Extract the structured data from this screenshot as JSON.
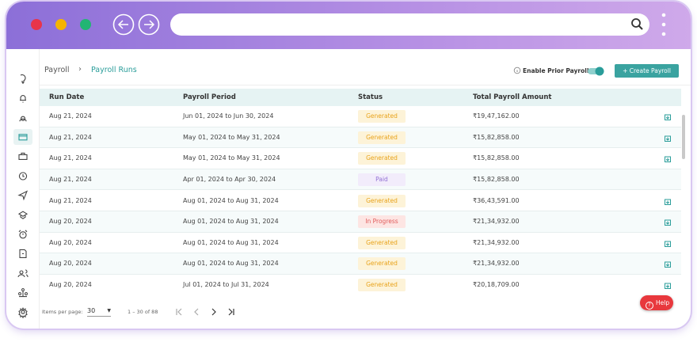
{
  "breadcrumb": {
    "parent": "Payroll",
    "separator": "›",
    "current": "Payroll Runs"
  },
  "toolbar": {
    "toggle_label": "Enable Prior Payroll",
    "toggle_on": true,
    "button": "+ Create Payroll"
  },
  "table": {
    "columns": [
      "Run Date",
      "Payroll Period",
      "Status",
      "Total Payroll Amount"
    ],
    "rows": [
      {
        "run_date": "Aug 21, 2024",
        "period": "Jun 01, 2024 to Jun 30, 2024",
        "status": "Generated",
        "status_color": "#e8a31c",
        "status_bg": "#fdf3d8",
        "amount": "₹19,47,162.00",
        "download": true
      },
      {
        "run_date": "Aug 21, 2024",
        "period": "May 01, 2024 to May 31, 2024",
        "status": "Generated",
        "status_color": "#e8a31c",
        "status_bg": "#fdf3d8",
        "amount": "₹15,82,858.00",
        "download": true
      },
      {
        "run_date": "Aug 21, 2024",
        "period": "May 01, 2024 to May 31, 2024",
        "status": "Generated",
        "status_color": "#e8a31c",
        "status_bg": "#fdf3d8",
        "amount": "₹15,82,858.00",
        "download": true
      },
      {
        "run_date": "Aug 21, 2024",
        "period": "Apr 01, 2024 to Apr 30, 2024",
        "status": "Paid",
        "status_color": "#9271d4",
        "status_bg": "#f2ecfb",
        "amount": "₹15,82,858.00",
        "download": false
      },
      {
        "run_date": "Aug 21, 2024",
        "period": "Aug 01, 2024 to Aug 31, 2024",
        "status": "Generated",
        "status_color": "#e8a31c",
        "status_bg": "#fdf3d8",
        "amount": "₹36,43,591.00",
        "download": true
      },
      {
        "run_date": "Aug 20, 2024",
        "period": "Aug 01, 2024 to Aug 31, 2024",
        "status": "In Progress",
        "status_color": "#e05a5a",
        "status_bg": "#fde5e3",
        "amount": "₹21,34,932.00",
        "download": true
      },
      {
        "run_date": "Aug 20, 2024",
        "period": "Aug 01, 2024 to Aug 31, 2024",
        "status": "Generated",
        "status_color": "#e8a31c",
        "status_bg": "#fdf3d8",
        "amount": "₹21,34,932.00",
        "download": true
      },
      {
        "run_date": "Aug 20, 2024",
        "period": "Aug 01, 2024 to Aug 31, 2024",
        "status": "Generated",
        "status_color": "#e8a31c",
        "status_bg": "#fdf3d8",
        "amount": "₹21,34,932.00",
        "download": true
      },
      {
        "run_date": "Aug 20, 2024",
        "period": "Jul 01, 2024 to Jul 31, 2024",
        "status": "Generated",
        "status_color": "#e8a31c",
        "status_bg": "#fdf3d8",
        "amount": "₹20,18,709.00",
        "download": true
      }
    ]
  },
  "pagination": {
    "items_label": "Items per page:",
    "page_size": "30",
    "range": "1 – 30 of 88"
  },
  "help": "Help"
}
